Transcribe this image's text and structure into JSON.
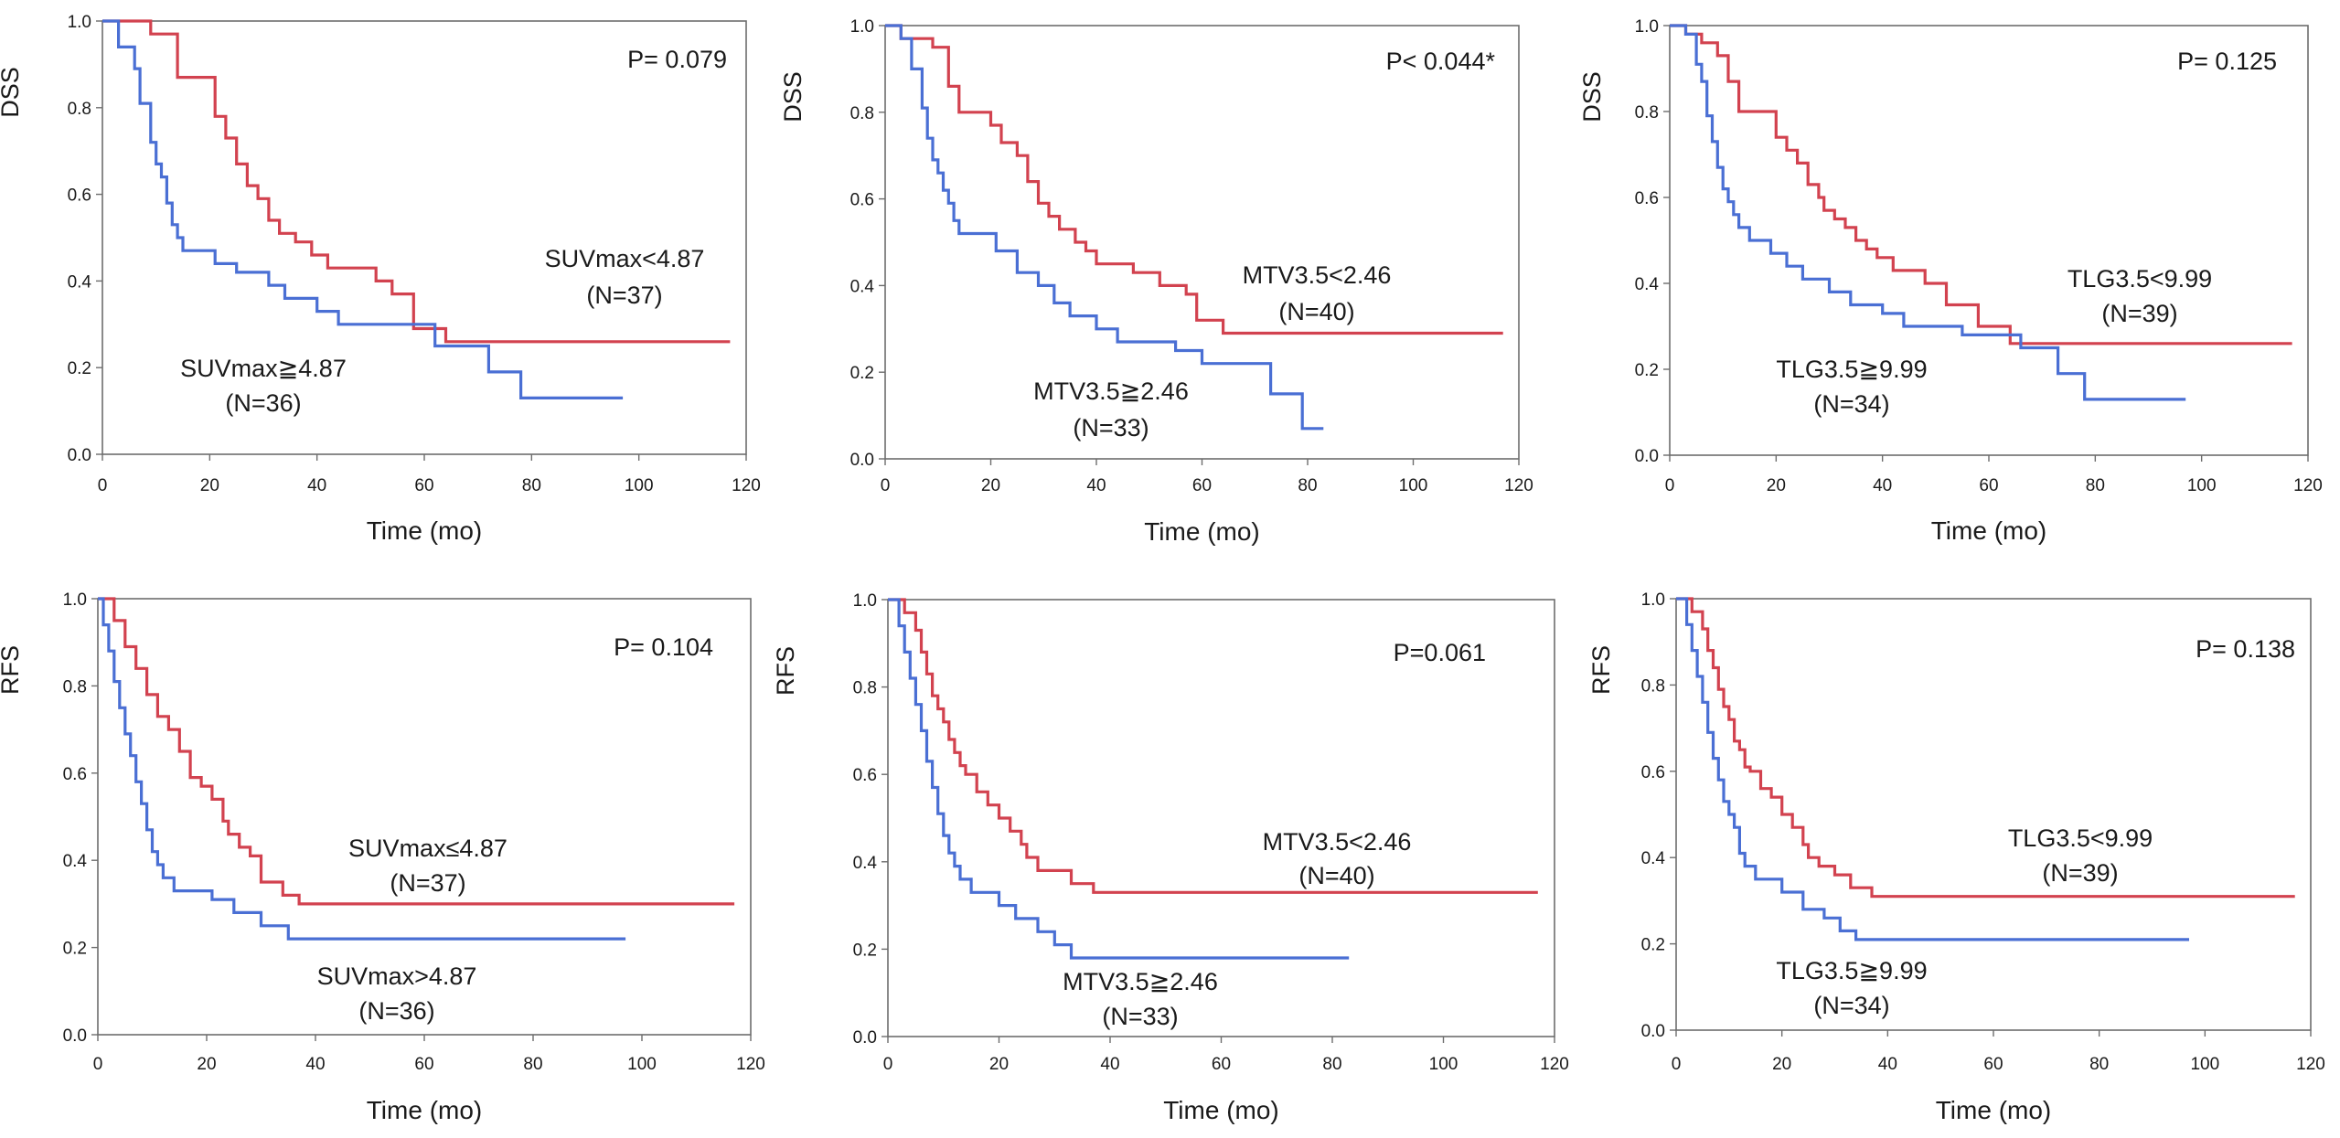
{
  "colors": {
    "high_group": "#4a6fd4",
    "low_group": "#d2424f",
    "text": "#1a1a1a",
    "frame": "#6d6d6d"
  },
  "chart_data": [
    {
      "type": "line",
      "id": "dss-suvmax",
      "ylabel": "DSS",
      "xlabel": "Time (mo)",
      "xlim": [
        0,
        120
      ],
      "ylim": [
        0,
        1
      ],
      "x_ticks": [
        "0",
        "20",
        "40",
        "60",
        "80",
        "100",
        "120"
      ],
      "y_ticks": [
        "0.0",
        "0.2",
        "0.4",
        "0.6",
        "0.8",
        "1.0"
      ],
      "p_value": "P= 0.079",
      "series": [
        {
          "name": "SUVmax<4.87",
          "n_label": "(N=37)",
          "color": "#d2424f",
          "x": [
            0,
            9,
            14,
            19,
            21,
            23,
            25,
            27,
            29,
            31,
            33,
            36,
            39,
            42,
            45,
            51,
            54,
            58,
            64,
            70,
            117
          ],
          "y": [
            1.0,
            0.97,
            0.87,
            0.87,
            0.78,
            0.73,
            0.67,
            0.62,
            0.59,
            0.54,
            0.51,
            0.49,
            0.46,
            0.43,
            0.43,
            0.4,
            0.37,
            0.29,
            0.26,
            0.26,
            0.26
          ]
        },
        {
          "name": "SUVmax≧4.87",
          "n_label": "(N=36)",
          "color": "#4a6fd4",
          "x": [
            0,
            3,
            6,
            7,
            9,
            10,
            11,
            12,
            13,
            14,
            15,
            16,
            21,
            25,
            31,
            34,
            40,
            44,
            62,
            72,
            78,
            97
          ],
          "y": [
            1.0,
            0.94,
            0.89,
            0.81,
            0.72,
            0.67,
            0.64,
            0.58,
            0.53,
            0.5,
            0.47,
            0.47,
            0.44,
            0.42,
            0.39,
            0.36,
            0.33,
            0.3,
            0.25,
            0.19,
            0.13,
            0.13
          ]
        }
      ]
    },
    {
      "type": "line",
      "id": "dss-mtv",
      "ylabel": "DSS",
      "xlabel": "Time (mo)",
      "xlim": [
        0,
        120
      ],
      "ylim": [
        0,
        1
      ],
      "x_ticks": [
        "0",
        "20",
        "40",
        "60",
        "80",
        "100",
        "120"
      ],
      "y_ticks": [
        "0.0",
        "0.2",
        "0.4",
        "0.6",
        "0.8",
        "1.0"
      ],
      "p_value": "P< 0.044*",
      "series": [
        {
          "name": "MTV3.5<2.46",
          "n_label": "(N=40)",
          "color": "#d2424f",
          "x": [
            0,
            3,
            5,
            9,
            12,
            14,
            20,
            22,
            25,
            27,
            29,
            31,
            33,
            36,
            38,
            40,
            47,
            52,
            57,
            59,
            64,
            80,
            117
          ],
          "y": [
            1.0,
            0.97,
            0.97,
            0.95,
            0.86,
            0.8,
            0.77,
            0.73,
            0.7,
            0.64,
            0.59,
            0.56,
            0.53,
            0.5,
            0.48,
            0.45,
            0.43,
            0.4,
            0.38,
            0.32,
            0.29,
            0.29,
            0.29
          ]
        },
        {
          "name": "MTV3.5≧2.46",
          "n_label": "(N=33)",
          "color": "#4a6fd4",
          "x": [
            0,
            3,
            5,
            7,
            8,
            9,
            10,
            11,
            12,
            13,
            14,
            18,
            21,
            25,
            29,
            32,
            35,
            40,
            44,
            49,
            55,
            60,
            65,
            73,
            79,
            83
          ],
          "y": [
            1.0,
            0.97,
            0.9,
            0.81,
            0.74,
            0.69,
            0.66,
            0.62,
            0.59,
            0.55,
            0.52,
            0.52,
            0.48,
            0.43,
            0.4,
            0.36,
            0.33,
            0.3,
            0.27,
            0.27,
            0.25,
            0.22,
            0.22,
            0.15,
            0.07,
            0.07
          ]
        }
      ]
    },
    {
      "type": "line",
      "id": "dss-tlg",
      "ylabel": "DSS",
      "xlabel": "Time (mo)",
      "xlim": [
        0,
        120
      ],
      "ylim": [
        0,
        1
      ],
      "x_ticks": [
        "0",
        "20",
        "40",
        "60",
        "80",
        "100",
        "120"
      ],
      "y_ticks": [
        "0.0",
        "0.2",
        "0.4",
        "0.6",
        "0.8",
        "1.0"
      ],
      "p_value": "P= 0.125",
      "series": [
        {
          "name": "TLG3.5<9.99",
          "n_label": "(N=39)",
          "color": "#d2424f",
          "x": [
            0,
            3,
            6,
            9,
            11,
            13,
            15,
            20,
            22,
            24,
            26,
            28,
            29,
            31,
            33,
            35,
            37,
            39,
            42,
            48,
            52,
            58,
            64,
            70,
            117
          ],
          "y": [
            1.0,
            0.98,
            0.96,
            0.93,
            0.87,
            0.8,
            0.8,
            0.74,
            0.71,
            0.68,
            0.63,
            0.6,
            0.57,
            0.55,
            0.53,
            0.5,
            0.48,
            0.46,
            0.43,
            0.4,
            0.35,
            0.3,
            0.26,
            0.26,
            0.26
          ]
        },
        {
          "name": "TLG3.5≧9.99",
          "n_label": "(N=34)",
          "color": "#4a6fd4",
          "x": [
            0,
            3,
            5,
            6,
            7,
            8,
            9,
            10,
            11,
            12,
            13,
            14,
            15,
            19,
            22,
            25,
            30,
            34,
            40,
            44,
            55,
            60,
            66,
            73,
            78,
            97
          ],
          "y": [
            1.0,
            0.98,
            0.91,
            0.87,
            0.79,
            0.73,
            0.67,
            0.62,
            0.59,
            0.56,
            0.53,
            0.53,
            0.5,
            0.47,
            0.44,
            0.41,
            0.38,
            0.35,
            0.33,
            0.3,
            0.28,
            0.28,
            0.25,
            0.19,
            0.13,
            0.13
          ]
        }
      ]
    },
    {
      "type": "line",
      "id": "rfs-suvmax",
      "ylabel": "RFS",
      "xlabel": "Time (mo)",
      "xlim": [
        0,
        120
      ],
      "ylim": [
        0,
        1
      ],
      "x_ticks": [
        "0",
        "20",
        "40",
        "60",
        "80",
        "100",
        "120"
      ],
      "y_ticks": [
        "0.0",
        "0.2",
        "0.4",
        "0.6",
        "0.8",
        "1.0"
      ],
      "p_value": "P= 0.104",
      "series": [
        {
          "name": "SUVmax≤4.87",
          "n_label": "(N=37)",
          "color": "#d2424f",
          "x": [
            0,
            3,
            5,
            7,
            9,
            11,
            13,
            15,
            17,
            19,
            21,
            23,
            24,
            26,
            28,
            30,
            34,
            37,
            40,
            117
          ],
          "y": [
            1.0,
            0.95,
            0.89,
            0.84,
            0.78,
            0.73,
            0.7,
            0.65,
            0.59,
            0.57,
            0.54,
            0.49,
            0.46,
            0.43,
            0.41,
            0.35,
            0.32,
            0.3,
            0.3,
            0.3
          ]
        },
        {
          "name": "SUVmax>4.87",
          "n_label": "(N=36)",
          "color": "#4a6fd4",
          "x": [
            0,
            1,
            2,
            3,
            4,
            5,
            6,
            7,
            8,
            9,
            10,
            11,
            12,
            14,
            16,
            21,
            25,
            30,
            35,
            40,
            97
          ],
          "y": [
            1.0,
            0.94,
            0.88,
            0.81,
            0.75,
            0.69,
            0.64,
            0.58,
            0.53,
            0.47,
            0.42,
            0.39,
            0.36,
            0.33,
            0.33,
            0.31,
            0.28,
            0.25,
            0.22,
            0.22,
            0.22
          ]
        }
      ]
    },
    {
      "type": "line",
      "id": "rfs-mtv",
      "ylabel": "RFS",
      "xlabel": "Time (mo)",
      "xlim": [
        0,
        120
      ],
      "ylim": [
        0,
        1
      ],
      "x_ticks": [
        "0",
        "20",
        "40",
        "60",
        "80",
        "100",
        "120"
      ],
      "y_ticks": [
        "0.0",
        "0.2",
        "0.4",
        "0.6",
        "0.8",
        "1.0"
      ],
      "p_value": "P=0.061",
      "series": [
        {
          "name": "MTV3.5<2.46",
          "n_label": "(N=40)",
          "color": "#d2424f",
          "x": [
            0,
            3,
            5,
            6,
            7,
            8,
            9,
            10,
            11,
            12,
            13,
            14,
            16,
            18,
            20,
            22,
            24,
            25,
            27,
            30,
            33,
            37,
            41,
            117
          ],
          "y": [
            1.0,
            0.97,
            0.93,
            0.88,
            0.83,
            0.78,
            0.75,
            0.72,
            0.68,
            0.65,
            0.62,
            0.6,
            0.56,
            0.53,
            0.5,
            0.47,
            0.44,
            0.41,
            0.38,
            0.38,
            0.35,
            0.33,
            0.33,
            0.33
          ]
        },
        {
          "name": "MTV3.5≧2.46",
          "n_label": "(N=33)",
          "color": "#4a6fd4",
          "x": [
            0,
            2,
            3,
            4,
            5,
            6,
            7,
            8,
            9,
            10,
            11,
            12,
            13,
            15,
            20,
            23,
            27,
            30,
            33,
            36,
            40,
            83
          ],
          "y": [
            1.0,
            0.94,
            0.88,
            0.82,
            0.76,
            0.7,
            0.63,
            0.57,
            0.51,
            0.46,
            0.42,
            0.39,
            0.36,
            0.33,
            0.3,
            0.27,
            0.24,
            0.21,
            0.18,
            0.18,
            0.18,
            0.18
          ]
        }
      ]
    },
    {
      "type": "line",
      "id": "rfs-tlg",
      "ylabel": "RFS",
      "xlabel": "Time (mo)",
      "xlim": [
        0,
        120
      ],
      "ylim": [
        0,
        1
      ],
      "x_ticks": [
        "0",
        "20",
        "40",
        "60",
        "80",
        "100",
        "120"
      ],
      "y_ticks": [
        "0.0",
        "0.2",
        "0.4",
        "0.6",
        "0.8",
        "1.0"
      ],
      "p_value": "P= 0.138",
      "series": [
        {
          "name": "TLG3.5<9.99",
          "n_label": "(N=39)",
          "color": "#d2424f",
          "x": [
            0,
            3,
            5,
            6,
            7,
            8,
            9,
            10,
            11,
            12,
            13,
            14,
            16,
            18,
            20,
            22,
            24,
            25,
            27,
            30,
            33,
            37,
            40,
            117
          ],
          "y": [
            1.0,
            0.97,
            0.93,
            0.88,
            0.84,
            0.79,
            0.75,
            0.72,
            0.67,
            0.65,
            0.61,
            0.6,
            0.56,
            0.54,
            0.5,
            0.47,
            0.43,
            0.4,
            0.38,
            0.36,
            0.33,
            0.31,
            0.31,
            0.31
          ]
        },
        {
          "name": "TLG3.5≧9.99",
          "n_label": "(N=34)",
          "color": "#4a6fd4",
          "x": [
            0,
            2,
            3,
            4,
            5,
            6,
            7,
            8,
            9,
            10,
            11,
            12,
            13,
            15,
            20,
            24,
            28,
            31,
            34,
            40,
            97
          ],
          "y": [
            1.0,
            0.94,
            0.88,
            0.82,
            0.76,
            0.69,
            0.63,
            0.58,
            0.53,
            0.5,
            0.47,
            0.41,
            0.38,
            0.35,
            0.32,
            0.28,
            0.26,
            0.23,
            0.21,
            0.21,
            0.21
          ]
        }
      ]
    }
  ]
}
